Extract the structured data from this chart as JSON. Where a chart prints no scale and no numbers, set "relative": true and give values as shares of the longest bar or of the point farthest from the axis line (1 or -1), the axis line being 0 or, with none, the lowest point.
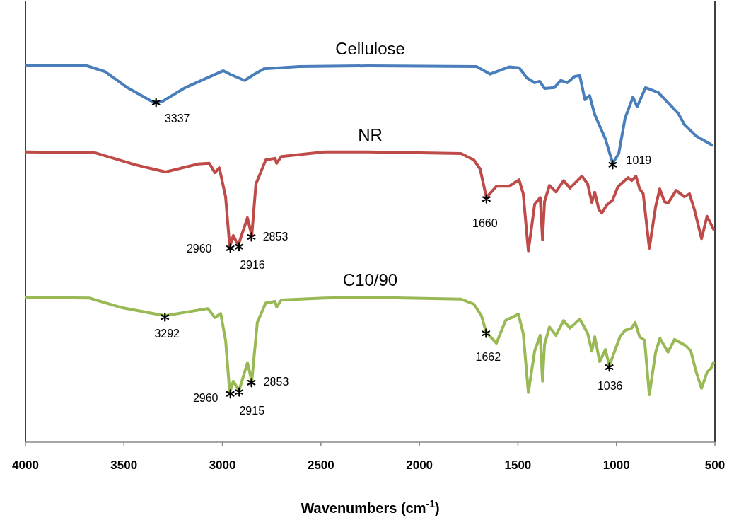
{
  "chart_data": {
    "type": "line",
    "relative": true,
    "xlabel": "Wavenumbers (cm$^{-1}$)",
    "xlim": [
      4000,
      500
    ],
    "xticks": [
      4000,
      3500,
      3000,
      2500,
      2000,
      1500,
      1000,
      500
    ],
    "series": [
      {
        "name": "Cellulose",
        "color": "#4a7ebb",
        "x": [
          3996,
          3688,
          3598,
          3483,
          3354,
          3303,
          3189,
          2995,
          2959,
          2887,
          2840,
          2790,
          2611,
          2262,
          1710,
          1641,
          1545,
          1494,
          1455,
          1415,
          1390,
          1365,
          1315,
          1283,
          1250,
          1211,
          1186,
          1160,
          1136,
          1110,
          1056,
          1019,
          988,
          956,
          916,
          895,
          852,
          787,
          687,
          655,
          597,
          514
        ],
        "values": [
          1,
          1,
          0.985,
          0.942,
          0.904,
          0.906,
          0.942,
          0.987,
          0.977,
          0.961,
          0.977,
          0.992,
          0.998,
          1,
          0.998,
          0.978,
          0.997,
          0.995,
          0.968,
          0.955,
          0.959,
          0.94,
          0.942,
          0.961,
          0.955,
          0.972,
          0.974,
          0.91,
          0.921,
          0.87,
          0.806,
          0.741,
          0.767,
          0.861,
          0.917,
          0.891,
          0.942,
          0.929,
          0.874,
          0.844,
          0.814,
          0.789
        ]
      },
      {
        "name": "NR",
        "color": "#be4b48",
        "x": [
          3996,
          3648,
          3443,
          3289,
          3124,
          3067,
          3038,
          3016,
          2984,
          2963,
          2945,
          2920,
          2873,
          2851,
          2830,
          2780,
          2733,
          2725,
          2701,
          2482,
          2262,
          1789,
          1724,
          1692,
          1660,
          1609,
          1545,
          1494,
          1473,
          1447,
          1415,
          1387,
          1375,
          1365,
          1340,
          1307,
          1268,
          1236,
          1175,
          1146,
          1125,
          1110,
          1089,
          1074,
          1049,
          1020,
          992,
          941,
          922,
          901,
          882,
          864,
          833,
          801,
          780,
          756,
          738,
          697,
          655,
          629,
          604,
          568,
          540,
          507
        ],
        "values": [
          0.771,
          0.769,
          0.737,
          0.718,
          0.739,
          0.741,
          0.716,
          0.729,
          0.652,
          0.519,
          0.549,
          0.523,
          0.596,
          0.549,
          0.686,
          0.75,
          0.754,
          0.741,
          0.759,
          0.771,
          0.771,
          0.767,
          0.75,
          0.726,
          0.65,
          0.68,
          0.68,
          0.697,
          0.66,
          0.508,
          0.632,
          0.65,
          0.538,
          0.639,
          0.682,
          0.665,
          0.695,
          0.675,
          0.707,
          0.686,
          0.637,
          0.664,
          0.618,
          0.609,
          0.63,
          0.643,
          0.679,
          0.703,
          0.695,
          0.707,
          0.673,
          0.66,
          0.515,
          0.626,
          0.673,
          0.639,
          0.635,
          0.669,
          0.652,
          0.66,
          0.618,
          0.541,
          0.6,
          0.566
        ]
      },
      {
        "name": "C10/90",
        "color": "#98b954",
        "x": [
          3996,
          3676,
          3508,
          3292,
          3074,
          3038,
          3009,
          2984,
          2963,
          2945,
          2916,
          2873,
          2851,
          2823,
          2780,
          2733,
          2725,
          2701,
          2482,
          2262,
          1789,
          1724,
          1685,
          1662,
          1609,
          1563,
          1498,
          1473,
          1447,
          1415,
          1387,
          1375,
          1365,
          1340,
          1307,
          1268,
          1236,
          1186,
          1146,
          1125,
          1110,
          1085,
          1056,
          1036,
          982,
          956,
          922,
          905,
          882,
          857,
          833,
          801,
          779,
          738,
          705,
          647,
          622,
          597,
          568,
          540,
          521,
          507
        ],
        "values": [
          0.385,
          0.383,
          0.357,
          0.336,
          0.355,
          0.331,
          0.342,
          0.271,
          0.132,
          0.162,
          0.137,
          0.211,
          0.162,
          0.318,
          0.37,
          0.374,
          0.359,
          0.378,
          0.383,
          0.385,
          0.38,
          0.367,
          0.336,
          0.293,
          0.263,
          0.323,
          0.34,
          0.289,
          0.132,
          0.242,
          0.284,
          0.162,
          0.259,
          0.306,
          0.284,
          0.323,
          0.303,
          0.327,
          0.289,
          0.242,
          0.28,
          0.214,
          0.246,
          0.203,
          0.28,
          0.297,
          0.303,
          0.318,
          0.28,
          0.271,
          0.126,
          0.239,
          0.276,
          0.239,
          0.273,
          0.256,
          0.242,
          0.19,
          0.143,
          0.186,
          0.195,
          0.212
        ]
      }
    ],
    "annotations": [
      {
        "text": "3337",
        "x": 3337,
        "y": 0.906
      },
      {
        "text": "1019",
        "x": 1019,
        "y": 0.741
      },
      {
        "text": "2960",
        "x": 2960,
        "y": 0.519
      },
      {
        "text": "2916",
        "x": 2916,
        "y": 0.523
      },
      {
        "text": "2853",
        "x": 2853,
        "y": 0.549
      },
      {
        "text": "1660",
        "x": 1660,
        "y": 0.65
      },
      {
        "text": "3292",
        "x": 3292,
        "y": 0.336
      },
      {
        "text": "2960",
        "x": 2960,
        "y": 0.132
      },
      {
        "text": "2915",
        "x": 2915,
        "y": 0.137
      },
      {
        "text": "2853",
        "x": 2853,
        "y": 0.162
      },
      {
        "text": "1662",
        "x": 1662,
        "y": 0.293
      },
      {
        "text": "1036",
        "x": 1036,
        "y": 0.203
      }
    ]
  }
}
